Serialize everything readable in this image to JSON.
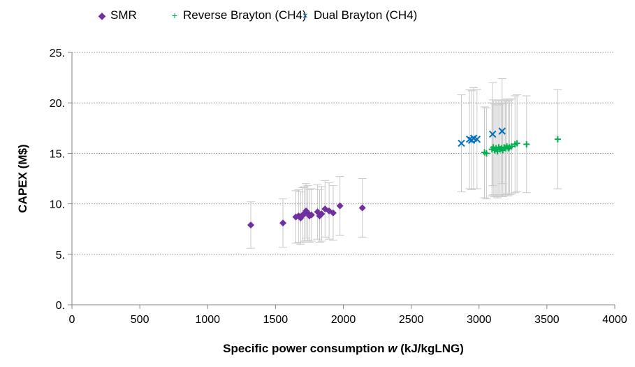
{
  "chart_data": {
    "type": "scatter",
    "title": "",
    "xlabel_prefix": "Specific power consumption ",
    "xlabel_var": "w",
    "xlabel_suffix": " (kJ/kgLNG)",
    "ylabel": "CAPEX (M$)",
    "xlim": [
      0,
      4000
    ],
    "ylim": [
      0,
      25
    ],
    "x_ticks": [
      0,
      500,
      1000,
      1500,
      2000,
      2500,
      3000,
      3500,
      4000
    ],
    "x_tick_labels": [
      "0",
      "500",
      "1000",
      "1500",
      "2000",
      "2500",
      "3000",
      "3500",
      "4000"
    ],
    "y_ticks": [
      0,
      5,
      10,
      15,
      20,
      25
    ],
    "y_tick_labels": [
      "0.",
      "5.",
      "10.",
      "15.",
      "20.",
      "25."
    ],
    "grid": "horizontal dotted",
    "legend_position": "top",
    "error_bar_color": "#c8c8c8",
    "series": [
      {
        "name": "SMR",
        "marker": "diamond",
        "color": "#7030a0",
        "legend_symbol": "◆",
        "points": [
          {
            "x": 1318,
            "y": 7.9,
            "err": 2.3
          },
          {
            "x": 1555,
            "y": 8.1,
            "err": 2.4
          },
          {
            "x": 1650,
            "y": 8.7,
            "err": 2.6
          },
          {
            "x": 1670,
            "y": 8.8,
            "err": 2.6
          },
          {
            "x": 1685,
            "y": 8.6,
            "err": 2.6
          },
          {
            "x": 1700,
            "y": 8.9,
            "err": 2.7
          },
          {
            "x": 1712,
            "y": 9.0,
            "err": 2.7
          },
          {
            "x": 1725,
            "y": 9.3,
            "err": 2.7
          },
          {
            "x": 1738,
            "y": 9.1,
            "err": 2.7
          },
          {
            "x": 1750,
            "y": 8.8,
            "err": 2.6
          },
          {
            "x": 1765,
            "y": 8.9,
            "err": 2.6
          },
          {
            "x": 1810,
            "y": 9.2,
            "err": 2.7
          },
          {
            "x": 1825,
            "y": 8.8,
            "err": 2.6
          },
          {
            "x": 1840,
            "y": 9.0,
            "err": 2.7
          },
          {
            "x": 1865,
            "y": 9.5,
            "err": 2.8
          },
          {
            "x": 1895,
            "y": 9.3,
            "err": 2.8
          },
          {
            "x": 1925,
            "y": 9.1,
            "err": 2.7
          },
          {
            "x": 1975,
            "y": 9.8,
            "err": 2.9
          },
          {
            "x": 2140,
            "y": 9.6,
            "err": 2.9
          }
        ]
      },
      {
        "name": "Reverse Brayton (CH4)",
        "marker": "plus",
        "color": "#00b050",
        "legend_symbol": "+",
        "points": [
          {
            "x": 3040,
            "y": 15.1,
            "err": 4.5
          },
          {
            "x": 3055,
            "y": 15.0,
            "err": 4.5
          },
          {
            "x": 3095,
            "y": 15.4,
            "err": 4.6
          },
          {
            "x": 3105,
            "y": 15.6,
            "err": 4.7
          },
          {
            "x": 3115,
            "y": 15.3,
            "err": 4.6
          },
          {
            "x": 3125,
            "y": 15.5,
            "err": 4.7
          },
          {
            "x": 3135,
            "y": 15.2,
            "err": 4.6
          },
          {
            "x": 3145,
            "y": 15.6,
            "err": 4.7
          },
          {
            "x": 3155,
            "y": 15.4,
            "err": 4.6
          },
          {
            "x": 3165,
            "y": 15.5,
            "err": 4.7
          },
          {
            "x": 3175,
            "y": 15.3,
            "err": 4.6
          },
          {
            "x": 3185,
            "y": 15.6,
            "err": 4.7
          },
          {
            "x": 3195,
            "y": 15.5,
            "err": 4.7
          },
          {
            "x": 3205,
            "y": 15.7,
            "err": 4.7
          },
          {
            "x": 3215,
            "y": 15.5,
            "err": 4.7
          },
          {
            "x": 3225,
            "y": 15.6,
            "err": 4.7
          },
          {
            "x": 3240,
            "y": 15.7,
            "err": 4.7
          },
          {
            "x": 3265,
            "y": 15.9,
            "err": 4.8
          },
          {
            "x": 3280,
            "y": 16.0,
            "err": 4.8
          },
          {
            "x": 3350,
            "y": 15.9,
            "err": 4.8
          },
          {
            "x": 3580,
            "y": 16.4,
            "err": 4.9
          }
        ]
      },
      {
        "name": "Dual Brayton (CH4)",
        "marker": "cross",
        "color": "#0070c0",
        "legend_symbol": "×",
        "points": [
          {
            "x": 2870,
            "y": 16.0,
            "err": 4.8
          },
          {
            "x": 2930,
            "y": 16.4,
            "err": 4.9
          },
          {
            "x": 2945,
            "y": 16.3,
            "err": 4.9
          },
          {
            "x": 2960,
            "y": 16.5,
            "err": 5.0
          },
          {
            "x": 2985,
            "y": 16.4,
            "err": 4.9
          },
          {
            "x": 3100,
            "y": 16.9,
            "err": 5.1
          },
          {
            "x": 3170,
            "y": 17.2,
            "err": 5.2
          }
        ]
      }
    ]
  }
}
